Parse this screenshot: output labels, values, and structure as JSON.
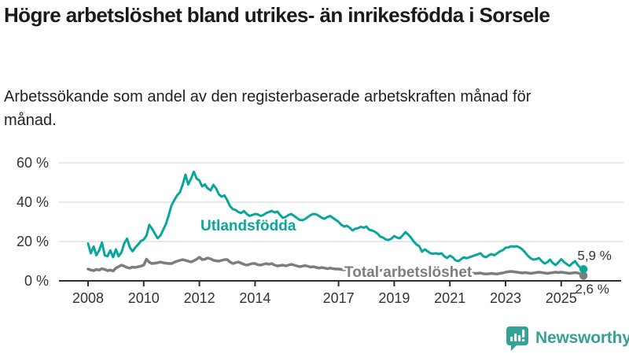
{
  "header": {
    "title": "Högre arbetslöshet bland utrikes- än inrikesfödda i Sorsele",
    "subtitle": "Arbetssökande som andel av den registerbaserade arbetskraften månad för månad."
  },
  "chart_data": {
    "type": "line",
    "title": "Högre arbetslöshet bland utrikes- än inrikesfödda i Sorsele",
    "subtitle": "Arbetssökande som andel av den registerbaserade arbetskraften månad för månad.",
    "unit": "%",
    "grid": true,
    "x_start": 2008.0,
    "x_step": 0.1,
    "ylim": [
      0,
      63
    ],
    "yticks": [
      {
        "value": 0,
        "label": "0 %"
      },
      {
        "value": 20,
        "label": "20 %"
      },
      {
        "value": 40,
        "label": "40 %"
      },
      {
        "value": 60,
        "label": "60 %"
      }
    ],
    "xticks": [
      2008,
      2010,
      2012,
      2014,
      2017,
      2019,
      2021,
      2023,
      2025
    ],
    "axis_color": "#333333",
    "grid_color": "#d9d9d9",
    "end_label_color": "#333333",
    "series": [
      {
        "name": "Total arbetslöshet",
        "color": "#7d7d7d",
        "end_label": "2,6 %",
        "end_value": 2.6,
        "values": [
          6,
          5.5,
          5.2,
          5.8,
          5.5,
          6.2,
          5.8,
          5.2,
          5.5,
          5,
          6.5,
          7.2,
          8,
          7.5,
          6.8,
          6.5,
          7,
          6.8,
          7.2,
          7.5,
          8,
          11,
          9.5,
          8.8,
          9,
          9.2,
          9.6,
          9.2,
          9,
          8.8,
          8.8,
          9.5,
          10,
          10.4,
          10.8,
          10.4,
          10,
          9.6,
          10.2,
          11,
          12,
          10.8,
          11,
          11.6,
          11.2,
          10.5,
          10.2,
          10,
          10.4,
          10.8,
          10.8,
          9.6,
          8.8,
          9.2,
          9.6,
          9,
          8.4,
          8,
          8.4,
          8.8,
          8.8,
          8.2,
          8,
          8.4,
          8.8,
          8.4,
          8.8,
          8,
          7.6,
          7.8,
          8,
          7.6,
          8,
          8.4,
          8,
          7.6,
          7.2,
          7.5,
          7.8,
          7.4,
          7,
          7.2,
          6.8,
          6.5,
          6.8,
          6.5,
          6.2,
          6.5,
          6.2,
          6,
          6,
          5.8,
          5.6,
          6,
          5.8,
          5.6,
          5.8,
          5.5,
          5.8,
          5.6,
          5.5,
          5.8,
          5.5,
          5.2,
          5.5,
          5.3,
          5.5,
          5.2,
          5,
          5.2,
          5.5,
          5.2,
          5,
          5.2,
          5.4,
          5,
          4.8,
          4.6,
          4.8,
          5,
          5.2,
          5.8,
          6,
          5.6,
          5.4,
          5.6,
          5.2,
          5,
          4.8,
          4.6,
          4.8,
          4.6,
          4.4,
          4.2,
          4.4,
          4.2,
          4,
          3.8,
          4,
          3.8,
          3.8,
          4,
          3.6,
          3.5,
          3.6,
          3.8,
          3.6,
          3.5,
          3.8,
          4,
          4.4,
          4.6,
          4.8,
          4.6,
          4.4,
          4.2,
          4,
          4.2,
          4,
          3.8,
          4,
          4.2,
          4.4,
          4.2,
          4,
          3.8,
          4,
          4.2,
          4.4,
          4.2,
          4.4,
          4.2,
          4,
          3.8,
          4,
          4.2,
          4,
          3.5,
          2.6
        ]
      },
      {
        "name": "Utlandsfödda",
        "color": "#0aa69c",
        "end_label": "5,9 %",
        "end_value": 5.9,
        "values": [
          19,
          14,
          17.5,
          13,
          15.5,
          19.5,
          13,
          12.5,
          15.5,
          12,
          16,
          12.5,
          14.5,
          19,
          21.5,
          17,
          15,
          17,
          18.5,
          20.3,
          21,
          23,
          28.5,
          26.5,
          24,
          21.6,
          23,
          26,
          29,
          33.5,
          38.5,
          41,
          43.5,
          45,
          49,
          54,
          49,
          52,
          55.5,
          52,
          51,
          48,
          49,
          47,
          46,
          48.8,
          47,
          44,
          42.8,
          43.5,
          41,
          38,
          36.5,
          36,
          35,
          34.5,
          35.5,
          34,
          33,
          33.5,
          34,
          33.8,
          33,
          33.5,
          34.5,
          35,
          35.6,
          34.8,
          35.2,
          33.5,
          32,
          32.5,
          33.5,
          34,
          33,
          32,
          31,
          30.8,
          31.5,
          32.5,
          33.5,
          34,
          33.8,
          33,
          32,
          31.6,
          32.5,
          33,
          32,
          31,
          30,
          28.5,
          27.6,
          28,
          27,
          25.6,
          26.5,
          26.8,
          27.5,
          27,
          27.6,
          26,
          25.6,
          25,
          24,
          22.5,
          22,
          21,
          20.8,
          21.5,
          22.8,
          22,
          21.6,
          23,
          24.8,
          23.6,
          22,
          20,
          18.5,
          17.6,
          14.8,
          16,
          15,
          14,
          13.8,
          14,
          13.6,
          14,
          12.5,
          11.6,
          12.8,
          12,
          10.5,
          10,
          11,
          12,
          11.5,
          12,
          12.5,
          13,
          13.5,
          14,
          12.5,
          12,
          13,
          13.6,
          13,
          14,
          15,
          15.6,
          16.8,
          17,
          17.6,
          17.4,
          17.6,
          17,
          16,
          14.5,
          12.8,
          11.5,
          10.8,
          11,
          11.6,
          10,
          8.8,
          9.5,
          10.8,
          9,
          8,
          9.5,
          11,
          9.6,
          8.5,
          7.6,
          9,
          10,
          8,
          6.5,
          5.9
        ]
      }
    ]
  },
  "footer": {
    "brand": "Newsworthy",
    "brand_color": "#36a195",
    "icon_color": "#36a195"
  }
}
